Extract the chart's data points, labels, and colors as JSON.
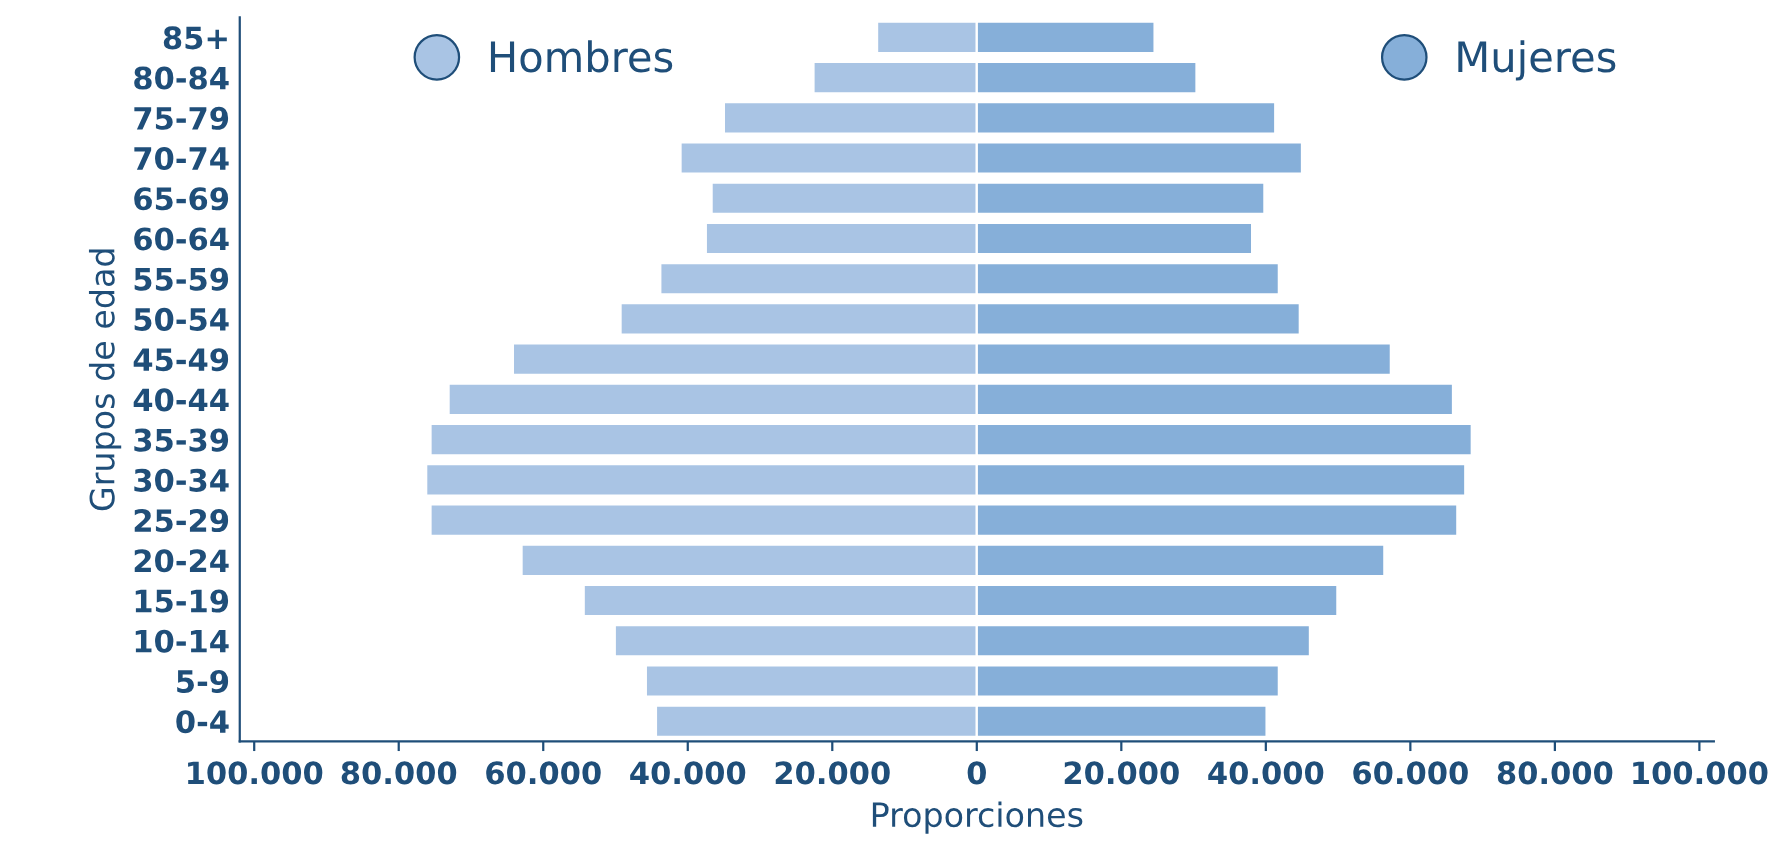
{
  "chart_data": {
    "type": "bar",
    "orientation": "horizontal",
    "stacked": true,
    "categories": [
      "85+",
      "80-84",
      "75-79",
      "70-74",
      "65-69",
      "60-64",
      "55-59",
      "50-54",
      "45-49",
      "40-44",
      "35-39",
      "30-34",
      "25-29",
      "20-24",
      "15-19",
      "10-14",
      "5-9",
      "0-4"
    ],
    "series": [
      {
        "name": "Hombres",
        "color": "#a9c4e4",
        "values": [
          -13800,
          -22600,
          -35000,
          -41000,
          -36700,
          -37500,
          -43800,
          -49300,
          -64200,
          -73100,
          -75600,
          -76200,
          -75600,
          -63000,
          -54400,
          -50100,
          -45800,
          -44400
        ]
      },
      {
        "name": "Mujeres",
        "color": "#86afd9",
        "values": [
          24600,
          30400,
          41300,
          45000,
          39800,
          38100,
          41800,
          44700,
          57300,
          65900,
          68500,
          67600,
          66500,
          56400,
          49900,
          46100,
          41800,
          40100
        ]
      }
    ],
    "xlim": [
      -102000,
      102000
    ],
    "xticks": [
      {
        "value": -100000,
        "label": "100.000"
      },
      {
        "value": -80000,
        "label": "80.000"
      },
      {
        "value": -60000,
        "label": "60.000"
      },
      {
        "value": -40000,
        "label": "40.000"
      },
      {
        "value": -20000,
        "label": "20.000"
      },
      0,
      {
        "value": 20000,
        "label": "20.000"
      },
      {
        "value": 40000,
        "label": "40.000"
      },
      {
        "value": 60000,
        "label": "60.000"
      },
      {
        "value": 80000,
        "label": "80.000"
      },
      {
        "value": 100000,
        "label": "100.000"
      }
    ],
    "xlabel": "Proporciones",
    "ylabel": "Grupos de edad",
    "legend": "top",
    "marker": "circle",
    "grid": false
  }
}
